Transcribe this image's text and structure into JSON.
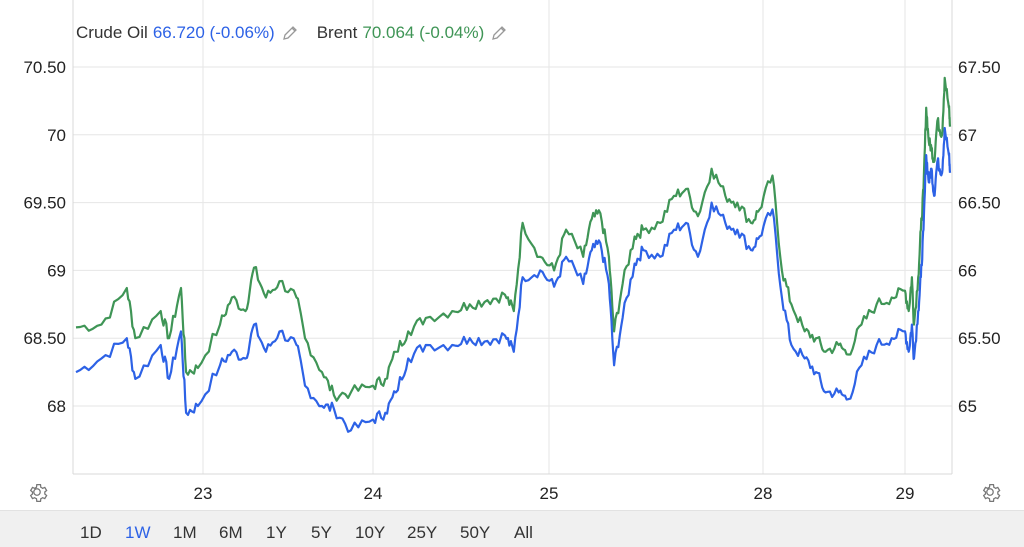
{
  "legend": {
    "oil_label": "Crude Oil",
    "oil_value": "66.720 (-0.06%)",
    "brent_label": "Brent",
    "brent_value": "70.064 (-0.04%)"
  },
  "colors": {
    "oil": "#2d62e6",
    "brent": "#3f9556",
    "grid": "#e6e6e6",
    "active": "#2d62e6"
  },
  "icons": {
    "edit": "pencil-icon",
    "settings": "gear-icon"
  },
  "ranges": [
    "1D",
    "1W",
    "1M",
    "6M",
    "1Y",
    "5Y",
    "10Y",
    "25Y",
    "50Y",
    "All"
  ],
  "active_range": "1W",
  "chart_data": {
    "type": "line",
    "x_tick_labels": [
      "23",
      "24",
      "25",
      "28",
      "29"
    ],
    "left_axis": {
      "ticks": [
        "68",
        "68.50",
        "69",
        "69.50",
        "70",
        "70.50"
      ],
      "ylim": [
        67.45,
        70.75
      ]
    },
    "right_axis": {
      "ticks": [
        "65",
        "65.50",
        "66",
        "66.50",
        "67",
        "67.50"
      ],
      "ylim": [
        64.48,
        67.78
      ]
    },
    "grid": true,
    "legend_position": "top-left",
    "x_range": [
      0,
      5.4
    ],
    "series": [
      {
        "name": "Crude Oil",
        "axis": "right",
        "points": [
          [
            0,
            65.25
          ],
          [
            0.15,
            65.35
          ],
          [
            0.3,
            65.5
          ],
          [
            0.35,
            65.2
          ],
          [
            0.5,
            65.45
          ],
          [
            0.55,
            65.2
          ],
          [
            0.62,
            65.55
          ],
          [
            0.65,
            64.95
          ],
          [
            0.72,
            65.0
          ],
          [
            0.85,
            65.3
          ],
          [
            0.92,
            65.4
          ],
          [
            1.0,
            65.35
          ],
          [
            1.05,
            65.6
          ],
          [
            1.12,
            65.4
          ],
          [
            1.2,
            65.55
          ],
          [
            1.3,
            65.45
          ],
          [
            1.35,
            65.15
          ],
          [
            1.45,
            65.0
          ],
          [
            1.52,
            64.98
          ],
          [
            1.62,
            64.82
          ],
          [
            1.75,
            64.9
          ],
          [
            1.82,
            64.95
          ],
          [
            1.88,
            65.1
          ],
          [
            1.95,
            65.35
          ],
          [
            2.05,
            65.45
          ],
          [
            2.2,
            65.45
          ],
          [
            2.3,
            65.5
          ],
          [
            2.4,
            65.48
          ],
          [
            2.5,
            65.52
          ],
          [
            2.55,
            65.4
          ],
          [
            2.6,
            65.95
          ],
          [
            2.7,
            66.0
          ],
          [
            2.78,
            65.88
          ],
          [
            2.85,
            66.1
          ],
          [
            2.95,
            65.9
          ],
          [
            3.0,
            66.15
          ],
          [
            3.05,
            66.2
          ],
          [
            3.1,
            65.9
          ],
          [
            3.13,
            65.3
          ],
          [
            3.18,
            65.65
          ],
          [
            3.25,
            66.05
          ],
          [
            3.3,
            66.15
          ],
          [
            3.4,
            66.1
          ],
          [
            3.48,
            66.3
          ],
          [
            3.55,
            66.35
          ],
          [
            3.62,
            66.1
          ],
          [
            3.7,
            66.5
          ],
          [
            3.78,
            66.35
          ],
          [
            3.85,
            66.3
          ],
          [
            3.93,
            66.15
          ],
          [
            3.98,
            66.25
          ],
          [
            4.05,
            66.45
          ],
          [
            4.1,
            65.8
          ],
          [
            4.15,
            65.45
          ],
          [
            4.22,
            65.35
          ],
          [
            4.28,
            65.25
          ],
          [
            4.33,
            65.1
          ],
          [
            4.4,
            65.1
          ],
          [
            4.45,
            65.05
          ],
          [
            4.52,
            65.3
          ],
          [
            4.6,
            65.45
          ],
          [
            4.68,
            65.5
          ],
          [
            4.75,
            65.55
          ],
          [
            4.82,
            65.4
          ],
          [
            4.88,
            65.6
          ],
          [
            4.92,
            65.35
          ],
          [
            5.0,
            65.7
          ],
          [
            5.05,
            65.95
          ],
          [
            5.1,
            66.3
          ],
          [
            5.15,
            66.85
          ],
          [
            5.2,
            66.65
          ],
          [
            5.25,
            66.75
          ],
          [
            5.3,
            66.55
          ],
          [
            5.36,
            66.8
          ],
          [
            5.45,
            66.72
          ],
          [
            5.5,
            67.05
          ],
          [
            5.58,
            66.85
          ],
          [
            5.6,
            66.72
          ]
        ]
      },
      {
        "name": "Brent",
        "axis": "left",
        "points": [
          [
            0,
            68.58
          ],
          [
            0.15,
            68.6
          ],
          [
            0.3,
            68.87
          ],
          [
            0.35,
            68.5
          ],
          [
            0.5,
            68.7
          ],
          [
            0.55,
            68.5
          ],
          [
            0.62,
            68.87
          ],
          [
            0.65,
            68.25
          ],
          [
            0.72,
            68.28
          ],
          [
            0.85,
            68.6
          ],
          [
            0.92,
            68.8
          ],
          [
            1.0,
            68.7
          ],
          [
            1.05,
            69.02
          ],
          [
            1.12,
            68.8
          ],
          [
            1.2,
            68.92
          ],
          [
            1.3,
            68.8
          ],
          [
            1.35,
            68.5
          ],
          [
            1.45,
            68.25
          ],
          [
            1.52,
            68.08
          ],
          [
            1.62,
            68.1
          ],
          [
            1.75,
            68.15
          ],
          [
            1.82,
            68.2
          ],
          [
            1.88,
            68.4
          ],
          [
            1.95,
            68.55
          ],
          [
            2.05,
            68.65
          ],
          [
            2.2,
            68.7
          ],
          [
            2.3,
            68.75
          ],
          [
            2.4,
            68.78
          ],
          [
            2.5,
            68.82
          ],
          [
            2.55,
            68.7
          ],
          [
            2.6,
            69.35
          ],
          [
            2.7,
            69.1
          ],
          [
            2.78,
            69.0
          ],
          [
            2.85,
            69.3
          ],
          [
            2.95,
            69.1
          ],
          [
            3.0,
            69.38
          ],
          [
            3.05,
            69.42
          ],
          [
            3.1,
            69.1
          ],
          [
            3.13,
            68.55
          ],
          [
            3.18,
            68.9
          ],
          [
            3.25,
            69.25
          ],
          [
            3.3,
            69.3
          ],
          [
            3.4,
            69.35
          ],
          [
            3.48,
            69.55
          ],
          [
            3.55,
            69.6
          ],
          [
            3.62,
            69.4
          ],
          [
            3.7,
            69.75
          ],
          [
            3.78,
            69.55
          ],
          [
            3.85,
            69.5
          ],
          [
            3.93,
            69.35
          ],
          [
            3.98,
            69.45
          ],
          [
            4.05,
            69.7
          ],
          [
            4.1,
            69.0
          ],
          [
            4.15,
            68.75
          ],
          [
            4.22,
            68.55
          ],
          [
            4.28,
            68.5
          ],
          [
            4.33,
            68.4
          ],
          [
            4.4,
            68.45
          ],
          [
            4.45,
            68.38
          ],
          [
            4.52,
            68.6
          ],
          [
            4.6,
            68.75
          ],
          [
            4.68,
            68.8
          ],
          [
            4.75,
            68.85
          ],
          [
            4.82,
            68.7
          ],
          [
            4.88,
            68.95
          ],
          [
            4.92,
            68.6
          ],
          [
            5.0,
            68.95
          ],
          [
            5.05,
            69.3
          ],
          [
            5.1,
            69.6
          ],
          [
            5.15,
            70.2
          ],
          [
            5.2,
            69.95
          ],
          [
            5.25,
            69.9
          ],
          [
            5.3,
            69.8
          ],
          [
            5.36,
            70.1
          ],
          [
            5.45,
            70.0
          ],
          [
            5.5,
            70.42
          ],
          [
            5.58,
            70.2
          ],
          [
            5.6,
            70.06
          ]
        ]
      }
    ]
  }
}
